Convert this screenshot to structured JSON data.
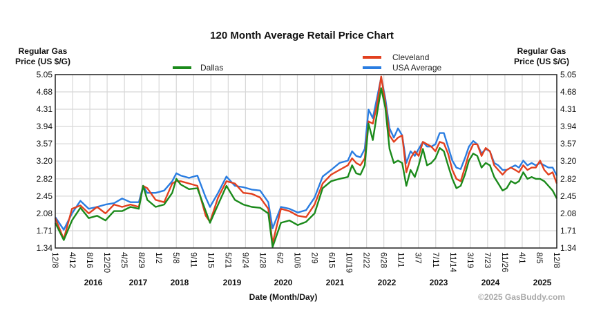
{
  "chart_data": {
    "type": "line",
    "title": "120 Month Average Retail Price Chart",
    "ylabel_left": [
      "Regular Gas",
      "Price (US $/G)"
    ],
    "ylabel_right": [
      "Regular Gas",
      "Price (US $/G)"
    ],
    "xlabel": "Date (Month/Day)",
    "copyright": "©2025 GasBuddy.com",
    "ylim": [
      1.34,
      5.05
    ],
    "xlim": [
      "2015-12-08",
      "2025-12-08"
    ],
    "grid": true,
    "y_ticks": [
      "5.05",
      "4.68",
      "4.31",
      "3.94",
      "3.57",
      "3.20",
      "2.82",
      "2.45",
      "2.08",
      "1.71",
      "1.34"
    ],
    "x_tick_labels": [
      "12/8",
      "4/12",
      "8/16",
      "12/20",
      "4/25",
      "8/29",
      "1/2",
      "5/8",
      "9/11",
      "1/15",
      "5/21",
      "9/24",
      "1/28",
      "6/2",
      "10/6",
      "2/9",
      "6/15",
      "10/19",
      "2/22",
      "6/28",
      "11/1",
      "3/7",
      "7/11",
      "11/14",
      "3/19",
      "7/23",
      "11/26",
      "4/1",
      "8/5",
      "12/8"
    ],
    "year_labels": [
      "2016",
      "2017",
      "2018",
      "2019",
      "2020",
      "2021",
      "2022",
      "2023",
      "2024",
      "2025"
    ],
    "x": [
      "2015-12",
      "2016-02",
      "2016-04",
      "2016-06",
      "2016-08",
      "2016-10",
      "2016-12",
      "2017-02",
      "2017-04",
      "2017-06",
      "2017-08",
      "2017-09",
      "2017-10",
      "2017-12",
      "2018-02",
      "2018-04",
      "2018-05",
      "2018-06",
      "2018-08",
      "2018-10",
      "2018-12",
      "2019-01",
      "2019-03",
      "2019-05",
      "2019-07",
      "2019-09",
      "2019-11",
      "2020-01",
      "2020-03",
      "2020-04",
      "2020-06",
      "2020-08",
      "2020-10",
      "2020-12",
      "2021-02",
      "2021-04",
      "2021-06",
      "2021-08",
      "2021-10",
      "2021-11",
      "2021-12",
      "2022-01",
      "2022-02",
      "2022-03",
      "2022-04",
      "2022-05",
      "2022-06",
      "2022-07",
      "2022-08",
      "2022-09",
      "2022-10",
      "2022-11",
      "2022-12",
      "2023-01",
      "2023-02",
      "2023-03",
      "2023-04",
      "2023-05",
      "2023-06",
      "2023-07",
      "2023-08",
      "2023-09",
      "2023-10",
      "2023-11",
      "2023-12",
      "2024-01",
      "2024-02",
      "2024-03",
      "2024-04",
      "2024-05",
      "2024-06",
      "2024-07",
      "2024-08",
      "2024-09",
      "2024-10",
      "2024-11",
      "2024-12",
      "2025-01",
      "2025-02",
      "2025-03",
      "2025-04",
      "2025-05",
      "2025-06",
      "2025-07",
      "2025-08",
      "2025-09",
      "2025-10",
      "2025-11",
      "2025-12"
    ],
    "series": [
      {
        "name": "Cleveland",
        "color": "#e2401f",
        "values": [
          1.98,
          1.53,
          2.18,
          2.25,
          2.08,
          2.22,
          2.08,
          2.27,
          2.22,
          2.27,
          2.22,
          2.67,
          2.62,
          2.37,
          2.32,
          2.72,
          2.77,
          2.77,
          2.72,
          2.67,
          2.03,
          1.9,
          2.42,
          2.77,
          2.72,
          2.52,
          2.5,
          2.42,
          2.18,
          1.44,
          2.18,
          2.13,
          2.03,
          2.0,
          2.27,
          2.72,
          2.91,
          3.01,
          3.11,
          3.26,
          3.16,
          3.11,
          3.26,
          4.05,
          4.0,
          4.39,
          5.01,
          4.44,
          3.75,
          3.61,
          3.7,
          3.75,
          2.96,
          3.26,
          3.41,
          3.31,
          3.61,
          3.56,
          3.51,
          3.41,
          3.61,
          3.58,
          3.36,
          3.01,
          2.82,
          2.77,
          3.06,
          3.36,
          3.56,
          3.56,
          3.31,
          3.48,
          3.41,
          3.11,
          3.01,
          2.91,
          3.01,
          3.06,
          3.01,
          2.96,
          3.11,
          3.01,
          3.06,
          3.06,
          3.21,
          3.01,
          2.91,
          2.96,
          2.72
        ]
      },
      {
        "name": "USA Average",
        "color": "#2a7de1",
        "values": [
          2.0,
          1.73,
          2.08,
          2.35,
          2.18,
          2.22,
          2.27,
          2.3,
          2.4,
          2.32,
          2.32,
          2.67,
          2.52,
          2.52,
          2.57,
          2.77,
          2.94,
          2.89,
          2.84,
          2.89,
          2.42,
          2.22,
          2.52,
          2.87,
          2.67,
          2.64,
          2.59,
          2.57,
          2.32,
          1.76,
          2.22,
          2.18,
          2.1,
          2.15,
          2.42,
          2.87,
          3.01,
          3.16,
          3.21,
          3.41,
          3.31,
          3.28,
          3.46,
          4.3,
          4.12,
          4.54,
          4.99,
          4.54,
          3.9,
          3.7,
          3.9,
          3.75,
          3.16,
          3.41,
          3.31,
          3.46,
          3.61,
          3.51,
          3.51,
          3.56,
          3.8,
          3.8,
          3.51,
          3.21,
          3.06,
          3.03,
          3.26,
          3.51,
          3.63,
          3.56,
          3.36,
          3.46,
          3.41,
          3.16,
          3.11,
          3.01,
          3.01,
          3.06,
          3.11,
          3.06,
          3.21,
          3.11,
          3.16,
          3.11,
          3.16,
          3.11,
          3.06,
          3.06,
          2.89
        ]
      },
      {
        "name": "Dallas",
        "color": "#1b8a1b",
        "values": [
          1.88,
          1.51,
          1.93,
          2.2,
          1.98,
          2.03,
          1.93,
          2.13,
          2.13,
          2.22,
          2.18,
          2.67,
          2.37,
          2.22,
          2.27,
          2.52,
          2.82,
          2.7,
          2.6,
          2.62,
          2.13,
          1.88,
          2.27,
          2.67,
          2.37,
          2.27,
          2.22,
          2.2,
          2.08,
          1.36,
          1.88,
          1.93,
          1.83,
          1.9,
          2.08,
          2.62,
          2.77,
          2.82,
          2.86,
          3.11,
          2.94,
          2.91,
          3.11,
          4.0,
          3.65,
          4.2,
          4.76,
          4.34,
          3.46,
          3.16,
          3.21,
          3.16,
          2.67,
          3.01,
          2.86,
          3.11,
          3.46,
          3.11,
          3.16,
          3.26,
          3.48,
          3.41,
          3.11,
          2.82,
          2.62,
          2.67,
          2.91,
          3.21,
          3.36,
          3.31,
          3.06,
          3.16,
          3.11,
          2.86,
          2.72,
          2.57,
          2.62,
          2.77,
          2.72,
          2.77,
          2.96,
          2.82,
          2.86,
          2.82,
          2.82,
          2.77,
          2.67,
          2.57,
          2.4
        ]
      }
    ],
    "legend": {
      "placement": "top",
      "items": [
        "Cleveland",
        "USA Average",
        "Dallas"
      ]
    }
  }
}
